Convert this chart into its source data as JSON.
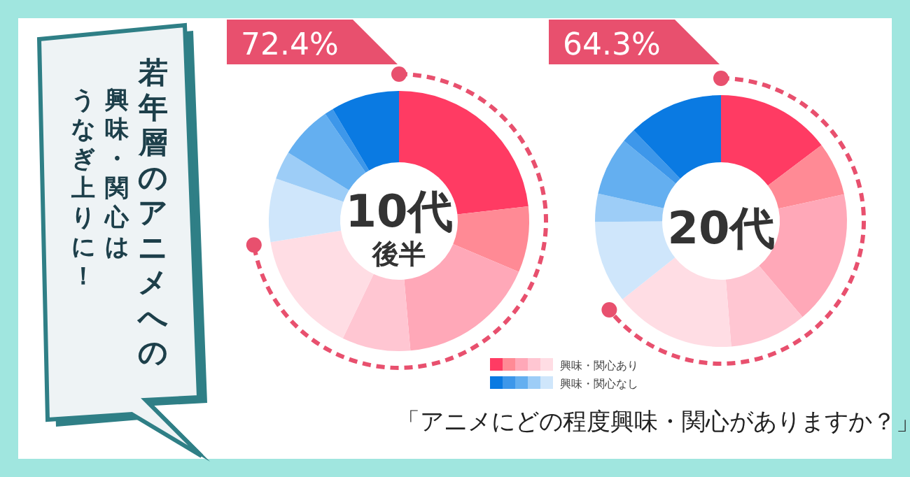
{
  "chart_data": [
    {
      "type": "other",
      "title": "若年層のアニメへの",
      "annotations": [
        "興味・関心は",
        "うなぎ上りに！"
      ],
      "subtitle": "「アニメにどの程度興味・関心がありますか？」"
    },
    {
      "type": "donut",
      "title": "10代",
      "subtitle": "後半",
      "annotations": [
        "72.4%"
      ],
      "categories": [
        null,
        null,
        null,
        null,
        null,
        null,
        null,
        null,
        null,
        null
      ],
      "values": [
        23.2,
        8.2,
        17.2,
        8.5,
        15.3,
        7.9,
        3.5,
        6.6,
        1.1,
        8.5
      ],
      "colors": [
        "#ff3b63",
        "#ff8a95",
        "#ffa8b8",
        "#ffc6d2",
        "#ffdde4",
        "#cfe6fb",
        "#9dcdf7",
        "#64aff0",
        "#3d97ea",
        "#0a7ae2"
      ]
    },
    {
      "type": "donut",
      "title": "20代",
      "annotations": [
        "64.3%",
        "興味・関心あり",
        "興味・関心なし"
      ],
      "categories": [
        null,
        null,
        null,
        null,
        null,
        null,
        null,
        null,
        null,
        null
      ],
      "values": [
        14.7,
        6.9,
        17.2,
        9.9,
        15.6,
        10.6,
        3.6,
        7.5,
        1.8,
        12.2
      ],
      "colors": [
        "#ff3b63",
        "#ff8a95",
        "#ffa8b8",
        "#ffc6d2",
        "#ffdde4",
        "#cfe6fb",
        "#9dcdf7",
        "#64aff0",
        "#3d97ea",
        "#0a7ae2"
      ]
    }
  ]
}
